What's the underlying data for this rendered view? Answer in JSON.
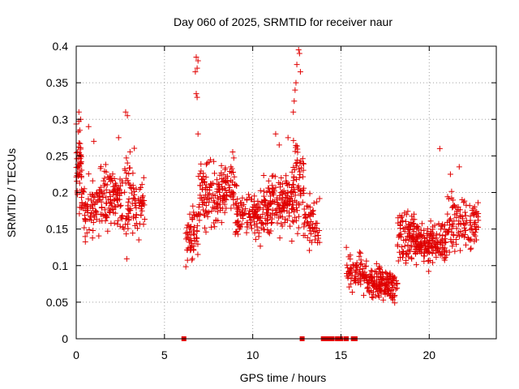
{
  "chart_data": {
    "type": "scatter",
    "title": "Day 060 of 2025, SRMTID for receiver naur",
    "xlabel": "GPS time / hours",
    "ylabel": "SRMTID / TECUs",
    "xlim": [
      0,
      23.8
    ],
    "ylim": [
      0,
      0.4
    ],
    "x_ticks": [
      0,
      5,
      10,
      15,
      20
    ],
    "x_tick_labels": [
      "0",
      "5",
      "10",
      "15",
      "20"
    ],
    "y_ticks": [
      0,
      0.05,
      0.1,
      0.15,
      0.2,
      0.25,
      0.3,
      0.35,
      0.4
    ],
    "y_tick_labels": [
      "0",
      "0.05",
      "0.1",
      "0.15",
      "0.2",
      "0.25",
      "0.3",
      "0.35",
      "0.4"
    ],
    "grid": true,
    "marker": "+",
    "color": "#e00000",
    "clusters": [
      {
        "x_start": 0.0,
        "x_end": 0.3,
        "y_center": 0.23,
        "y_spread": 0.09,
        "count": 45
      },
      {
        "x_start": 0.3,
        "x_end": 1.2,
        "y_center": 0.18,
        "y_spread": 0.07,
        "count": 70
      },
      {
        "x_start": 1.2,
        "x_end": 2.5,
        "y_center": 0.19,
        "y_spread": 0.08,
        "count": 110
      },
      {
        "x_start": 2.5,
        "x_end": 3.3,
        "y_center": 0.19,
        "y_spread": 0.1,
        "count": 60
      },
      {
        "x_start": 3.3,
        "x_end": 3.9,
        "y_center": 0.18,
        "y_spread": 0.06,
        "count": 40
      },
      {
        "x_start": 6.2,
        "x_end": 6.9,
        "y_center": 0.14,
        "y_spread": 0.06,
        "count": 60
      },
      {
        "x_start": 6.9,
        "x_end": 9.0,
        "y_center": 0.2,
        "y_spread": 0.07,
        "count": 170
      },
      {
        "x_start": 9.0,
        "x_end": 10.8,
        "y_center": 0.17,
        "y_spread": 0.06,
        "count": 140
      },
      {
        "x_start": 10.8,
        "x_end": 12.3,
        "y_center": 0.19,
        "y_spread": 0.07,
        "count": 150
      },
      {
        "x_start": 12.3,
        "x_end": 12.9,
        "y_center": 0.21,
        "y_spread": 0.1,
        "count": 60
      },
      {
        "x_start": 12.9,
        "x_end": 13.8,
        "y_center": 0.16,
        "y_spread": 0.06,
        "count": 55
      },
      {
        "x_start": 15.3,
        "x_end": 16.5,
        "y_center": 0.09,
        "y_spread": 0.04,
        "count": 80
      },
      {
        "x_start": 16.5,
        "x_end": 18.2,
        "y_center": 0.075,
        "y_spread": 0.035,
        "count": 160
      },
      {
        "x_start": 18.2,
        "x_end": 19.2,
        "y_center": 0.14,
        "y_spread": 0.06,
        "count": 90
      },
      {
        "x_start": 19.2,
        "x_end": 21.0,
        "y_center": 0.13,
        "y_spread": 0.045,
        "count": 170
      },
      {
        "x_start": 21.0,
        "x_end": 22.8,
        "y_center": 0.16,
        "y_spread": 0.06,
        "count": 120
      }
    ],
    "highlight_points": [
      {
        "x": 0.15,
        "y": 0.31
      },
      {
        "x": 0.25,
        "y": 0.3
      },
      {
        "x": 0.2,
        "y": 0.285
      },
      {
        "x": 0.7,
        "y": 0.29
      },
      {
        "x": 1.0,
        "y": 0.27
      },
      {
        "x": 2.8,
        "y": 0.31
      },
      {
        "x": 2.9,
        "y": 0.305
      },
      {
        "x": 2.4,
        "y": 0.275
      },
      {
        "x": 6.8,
        "y": 0.385
      },
      {
        "x": 6.9,
        "y": 0.38
      },
      {
        "x": 6.85,
        "y": 0.37
      },
      {
        "x": 6.75,
        "y": 0.365
      },
      {
        "x": 6.8,
        "y": 0.335
      },
      {
        "x": 6.85,
        "y": 0.33
      },
      {
        "x": 6.9,
        "y": 0.28
      },
      {
        "x": 12.5,
        "y": 0.375
      },
      {
        "x": 12.45,
        "y": 0.35
      },
      {
        "x": 12.4,
        "y": 0.34
      },
      {
        "x": 12.35,
        "y": 0.325
      },
      {
        "x": 12.3,
        "y": 0.31
      },
      {
        "x": 12.6,
        "y": 0.395
      },
      {
        "x": 12.65,
        "y": 0.39
      },
      {
        "x": 12.7,
        "y": 0.365
      },
      {
        "x": 11.3,
        "y": 0.28
      },
      {
        "x": 11.5,
        "y": 0.265
      },
      {
        "x": 12.0,
        "y": 0.275
      },
      {
        "x": 20.6,
        "y": 0.26
      },
      {
        "x": 21.2,
        "y": 0.225
      },
      {
        "x": 21.7,
        "y": 0.235
      }
    ],
    "zero_points_x": [
      6.1,
      12.8,
      14.0,
      14.1,
      14.2,
      14.4,
      14.5,
      14.8,
      15.0,
      15.3,
      15.7,
      15.8
    ]
  }
}
